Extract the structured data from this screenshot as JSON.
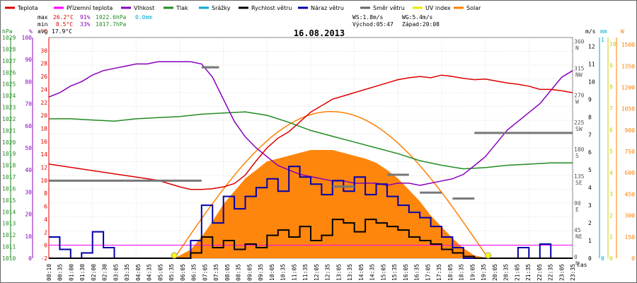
{
  "chart_data": {
    "type": "line",
    "title": "16.08.2013",
    "x_axis_label": "čas",
    "legend": [
      {
        "label": "Teplota",
        "color": "#dd0000"
      },
      {
        "label": "Přízemní teplota",
        "color": "#ff00ff"
      },
      {
        "label": "Vlhkost",
        "color": "#8800bb"
      },
      {
        "label": "Tlak",
        "color": "#228b22"
      },
      {
        "label": "Srážky",
        "color": "#00aacc"
      },
      {
        "label": "Rychlost větru",
        "color": "#000000"
      },
      {
        "label": "Náraz větru",
        "color": "#0000aa"
      },
      {
        "label": "Směr větru",
        "color": "#666666"
      },
      {
        "label": "UV index",
        "color": "#e8e800"
      },
      {
        "label": "Solar",
        "color": "#ff8000"
      }
    ],
    "stats": {
      "max": {
        "label": "max",
        "temp": "26.2°C",
        "humidity": "91%",
        "pressure": "1022.6hPa",
        "rain": "0.0mm"
      },
      "min": {
        "label": "min",
        "temp": "8.5°C",
        "humidity": "33%",
        "pressure": "1017.7hPa"
      },
      "avg": {
        "label": "avg",
        "temp": "17.9°C"
      },
      "ws": "WS:1.8m/s",
      "wg": "WG:5.4m/s",
      "sunrise": "Východ:05:47",
      "sunset": "Západ:20:08"
    },
    "axes": {
      "hpa": {
        "unit": "hPa",
        "color": "#228b22",
        "ticks": [
          1010,
          1011,
          1012,
          1013,
          1014,
          1015,
          1016,
          1017,
          1018,
          1019,
          1020,
          1021,
          1022,
          1023,
          1024,
          1025,
          1026,
          1027,
          1028,
          1029
        ]
      },
      "percent": {
        "unit": "%",
        "color": "#8800bb",
        "ticks": [
          0,
          10,
          20,
          30,
          40,
          50,
          60,
          70,
          80,
          90,
          100
        ]
      },
      "celsius": {
        "unit": "°C",
        "color": "#dd0000",
        "ticks": [
          -2,
          0,
          2,
          4,
          6,
          8,
          10,
          12,
          14,
          16,
          18,
          20,
          22,
          24,
          26,
          28,
          30
        ]
      },
      "direction": {
        "labels": [
          [
            "0",
            "N"
          ],
          [
            "45",
            "NE"
          ],
          [
            "90",
            "E"
          ],
          [
            "135",
            "SE"
          ],
          [
            "180",
            "S"
          ],
          [
            "225",
            "SW"
          ],
          [
            "270",
            "W"
          ],
          [
            "315",
            "NW"
          ],
          [
            "360",
            "N"
          ]
        ]
      },
      "ms": {
        "unit": "m/s",
        "ticks": [
          0,
          1,
          2,
          3,
          4,
          5,
          6,
          7,
          8,
          9,
          10,
          11,
          12
        ]
      },
      "mm": {
        "unit": "mm",
        "color": "#00aacc",
        "ticks": [
          "0",
          "1"
        ]
      },
      "uv": {
        "unit": "",
        "color": "#cccc00",
        "ticks": [
          "0",
          "1",
          "2",
          "3",
          "4",
          "5",
          "6",
          "7",
          "8",
          "9",
          "10"
        ]
      },
      "wm2": {
        "unit": "W",
        "color": "#ff8000",
        "ticks": [
          0,
          150,
          300,
          450,
          600,
          750,
          900,
          1050,
          1200,
          1350,
          1500
        ]
      }
    },
    "time_labels": [
      "00:10",
      "00:35",
      "01:00",
      "01:30",
      "02:00",
      "02:30",
      "03:05",
      "03:35",
      "04:05",
      "04:35",
      "05:05",
      "05:35",
      "06:05",
      "06:35",
      "07:05",
      "07:35",
      "08:05",
      "08:35",
      "09:05",
      "09:35",
      "10:05",
      "10:35",
      "11:05",
      "11:35",
      "12:05",
      "12:35",
      "13:05",
      "13:35",
      "14:05",
      "14:35",
      "15:05",
      "15:35",
      "16:05",
      "16:35",
      "17:05",
      "17:35",
      "18:05",
      "18:35",
      "19:05",
      "19:35",
      "20:05",
      "20:35",
      "21:05",
      "21:35",
      "22:05",
      "22:35",
      "23:05",
      "23:35"
    ],
    "series": {
      "temperature": {
        "name": "Teplota",
        "x": [
          0,
          1,
          2,
          3,
          4,
          5,
          5.5,
          6,
          6.5,
          7,
          7.5,
          8,
          8.5,
          9,
          9.5,
          10,
          10.5,
          11,
          11.5,
          12,
          12.5,
          13,
          13.5,
          14,
          14.5,
          15,
          15.5,
          16,
          16.5,
          17,
          17.5,
          18,
          18.5,
          19,
          19.5,
          20,
          20.5,
          21,
          21.5,
          22,
          22.5,
          23,
          23.5,
          24
        ],
        "values": [
          12.5,
          12,
          11.5,
          11,
          10.5,
          10,
          9.5,
          9,
          8.6,
          8.6,
          8.7,
          9,
          9.5,
          10.8,
          13,
          15,
          16.5,
          17.5,
          19,
          20.5,
          21.5,
          22.5,
          23,
          23.5,
          24,
          24.5,
          25,
          25.5,
          25.8,
          26,
          25.8,
          26.2,
          26,
          25.7,
          25.5,
          25.6,
          25.3,
          25,
          24.8,
          24.5,
          24,
          24,
          23.8,
          23.5
        ]
      },
      "humidity": {
        "name": "Vlhkost",
        "x": [
          0,
          0.5,
          1,
          1.5,
          2,
          2.5,
          3,
          3.5,
          4,
          4.5,
          5,
          5.5,
          6,
          6.5,
          7,
          7.5,
          8,
          8.5,
          9,
          9.5,
          10,
          10.5,
          11,
          11.5,
          12,
          12.5,
          13,
          13.5,
          14,
          14.5,
          15,
          15.5,
          16,
          16.5,
          17,
          17.5,
          18,
          18.5,
          19,
          19.5,
          20,
          20.5,
          21,
          21.5,
          22,
          22.5,
          23,
          23.5,
          24
        ],
        "values": [
          73,
          75,
          78,
          80,
          83,
          85,
          86,
          87,
          88,
          88,
          89,
          89,
          89,
          89,
          88,
          82,
          72,
          62,
          55,
          50,
          46,
          42,
          40,
          38,
          37,
          36,
          35,
          35,
          34,
          34,
          34,
          33,
          34,
          34,
          33,
          34,
          35,
          36,
          38,
          42,
          46,
          52,
          58,
          62,
          66,
          70,
          76,
          82,
          85
        ]
      },
      "pressure": {
        "name": "Tlak",
        "x": [
          0,
          1,
          2,
          3,
          4,
          5,
          6,
          7,
          8,
          9,
          10,
          11,
          12,
          13,
          14,
          15,
          16,
          17,
          18,
          19,
          20,
          21,
          22,
          23,
          24
        ],
        "values": [
          1022.0,
          1022.0,
          1021.9,
          1021.8,
          1022.0,
          1022.1,
          1022.2,
          1022.4,
          1022.5,
          1022.6,
          1022.3,
          1021.7,
          1021.0,
          1020.5,
          1020.0,
          1019.5,
          1019.0,
          1018.4,
          1018.0,
          1017.7,
          1017.8,
          1018.0,
          1018.1,
          1018.2,
          1018.2
        ]
      },
      "wind_speed": {
        "name": "Rychlost větru",
        "x": [
          0,
          1,
          2,
          3,
          4,
          5,
          6,
          6.5,
          7,
          7.5,
          8,
          8.5,
          9,
          9.5,
          10,
          10.5,
          11,
          11.5,
          12,
          12.5,
          13,
          13.5,
          14,
          14.5,
          15,
          15.5,
          16,
          16.5,
          17,
          17.5,
          18,
          18.5,
          19,
          19.5,
          20,
          21,
          22,
          23,
          24
        ],
        "values": [
          0,
          0,
          0,
          0,
          0,
          0,
          0,
          0.3,
          1.2,
          0.6,
          1.0,
          0.5,
          0.8,
          0.6,
          1.3,
          1.6,
          1.2,
          1.8,
          1.0,
          1.3,
          2.2,
          2.0,
          1.5,
          2.2,
          2.0,
          1.8,
          1.6,
          1.2,
          1.0,
          0.8,
          0.5,
          0.3,
          0.1,
          0,
          0,
          0,
          0,
          0,
          0
        ]
      },
      "wind_gust": {
        "name": "Náraz větru",
        "x": [
          0,
          0.5,
          1,
          1.5,
          2,
          2.5,
          3,
          4,
          5,
          6,
          6.5,
          7,
          7.5,
          8,
          8.5,
          9,
          9.5,
          10,
          10.5,
          11,
          11.5,
          12,
          12.5,
          13,
          13.5,
          14,
          14.5,
          15,
          15.5,
          16,
          16.5,
          17,
          17.5,
          18,
          18.5,
          19,
          19.5,
          20,
          21,
          21.5,
          22,
          22.5,
          23,
          24
        ],
        "values": [
          1.2,
          0.5,
          0,
          0.3,
          1.5,
          0.6,
          0,
          0,
          0,
          0,
          1.0,
          3.0,
          2.0,
          3.5,
          2.8,
          3.5,
          4.0,
          4.5,
          3.8,
          5.2,
          4.6,
          4.2,
          3.6,
          4.4,
          3.8,
          4.6,
          3.6,
          4.2,
          3.5,
          3.0,
          2.6,
          2.3,
          1.8,
          1.2,
          0.6,
          0,
          0,
          0,
          0,
          0.6,
          0,
          0.8,
          0,
          0
        ]
      },
      "solar": {
        "name": "Solar",
        "x": [
          5.75,
          6.5,
          7,
          7.5,
          8,
          8.5,
          9,
          9.5,
          10,
          10.5,
          11,
          11.5,
          12,
          12.5,
          13,
          13.5,
          14,
          14.5,
          15,
          15.5,
          16,
          16.5,
          17,
          17.5,
          18,
          18.5,
          19,
          19.5,
          20.13
        ],
        "values": [
          0,
          60,
          150,
          260,
          380,
          470,
          560,
          620,
          680,
          700,
          720,
          740,
          760,
          760,
          760,
          740,
          720,
          700,
          670,
          620,
          560,
          480,
          400,
          300,
          220,
          140,
          70,
          20,
          0
        ]
      },
      "ground_temp": {
        "name": "Přízemní teplota",
        "values": [
          0
        ]
      },
      "rain": {
        "name": "Srážky",
        "values": [
          0
        ]
      }
    }
  }
}
